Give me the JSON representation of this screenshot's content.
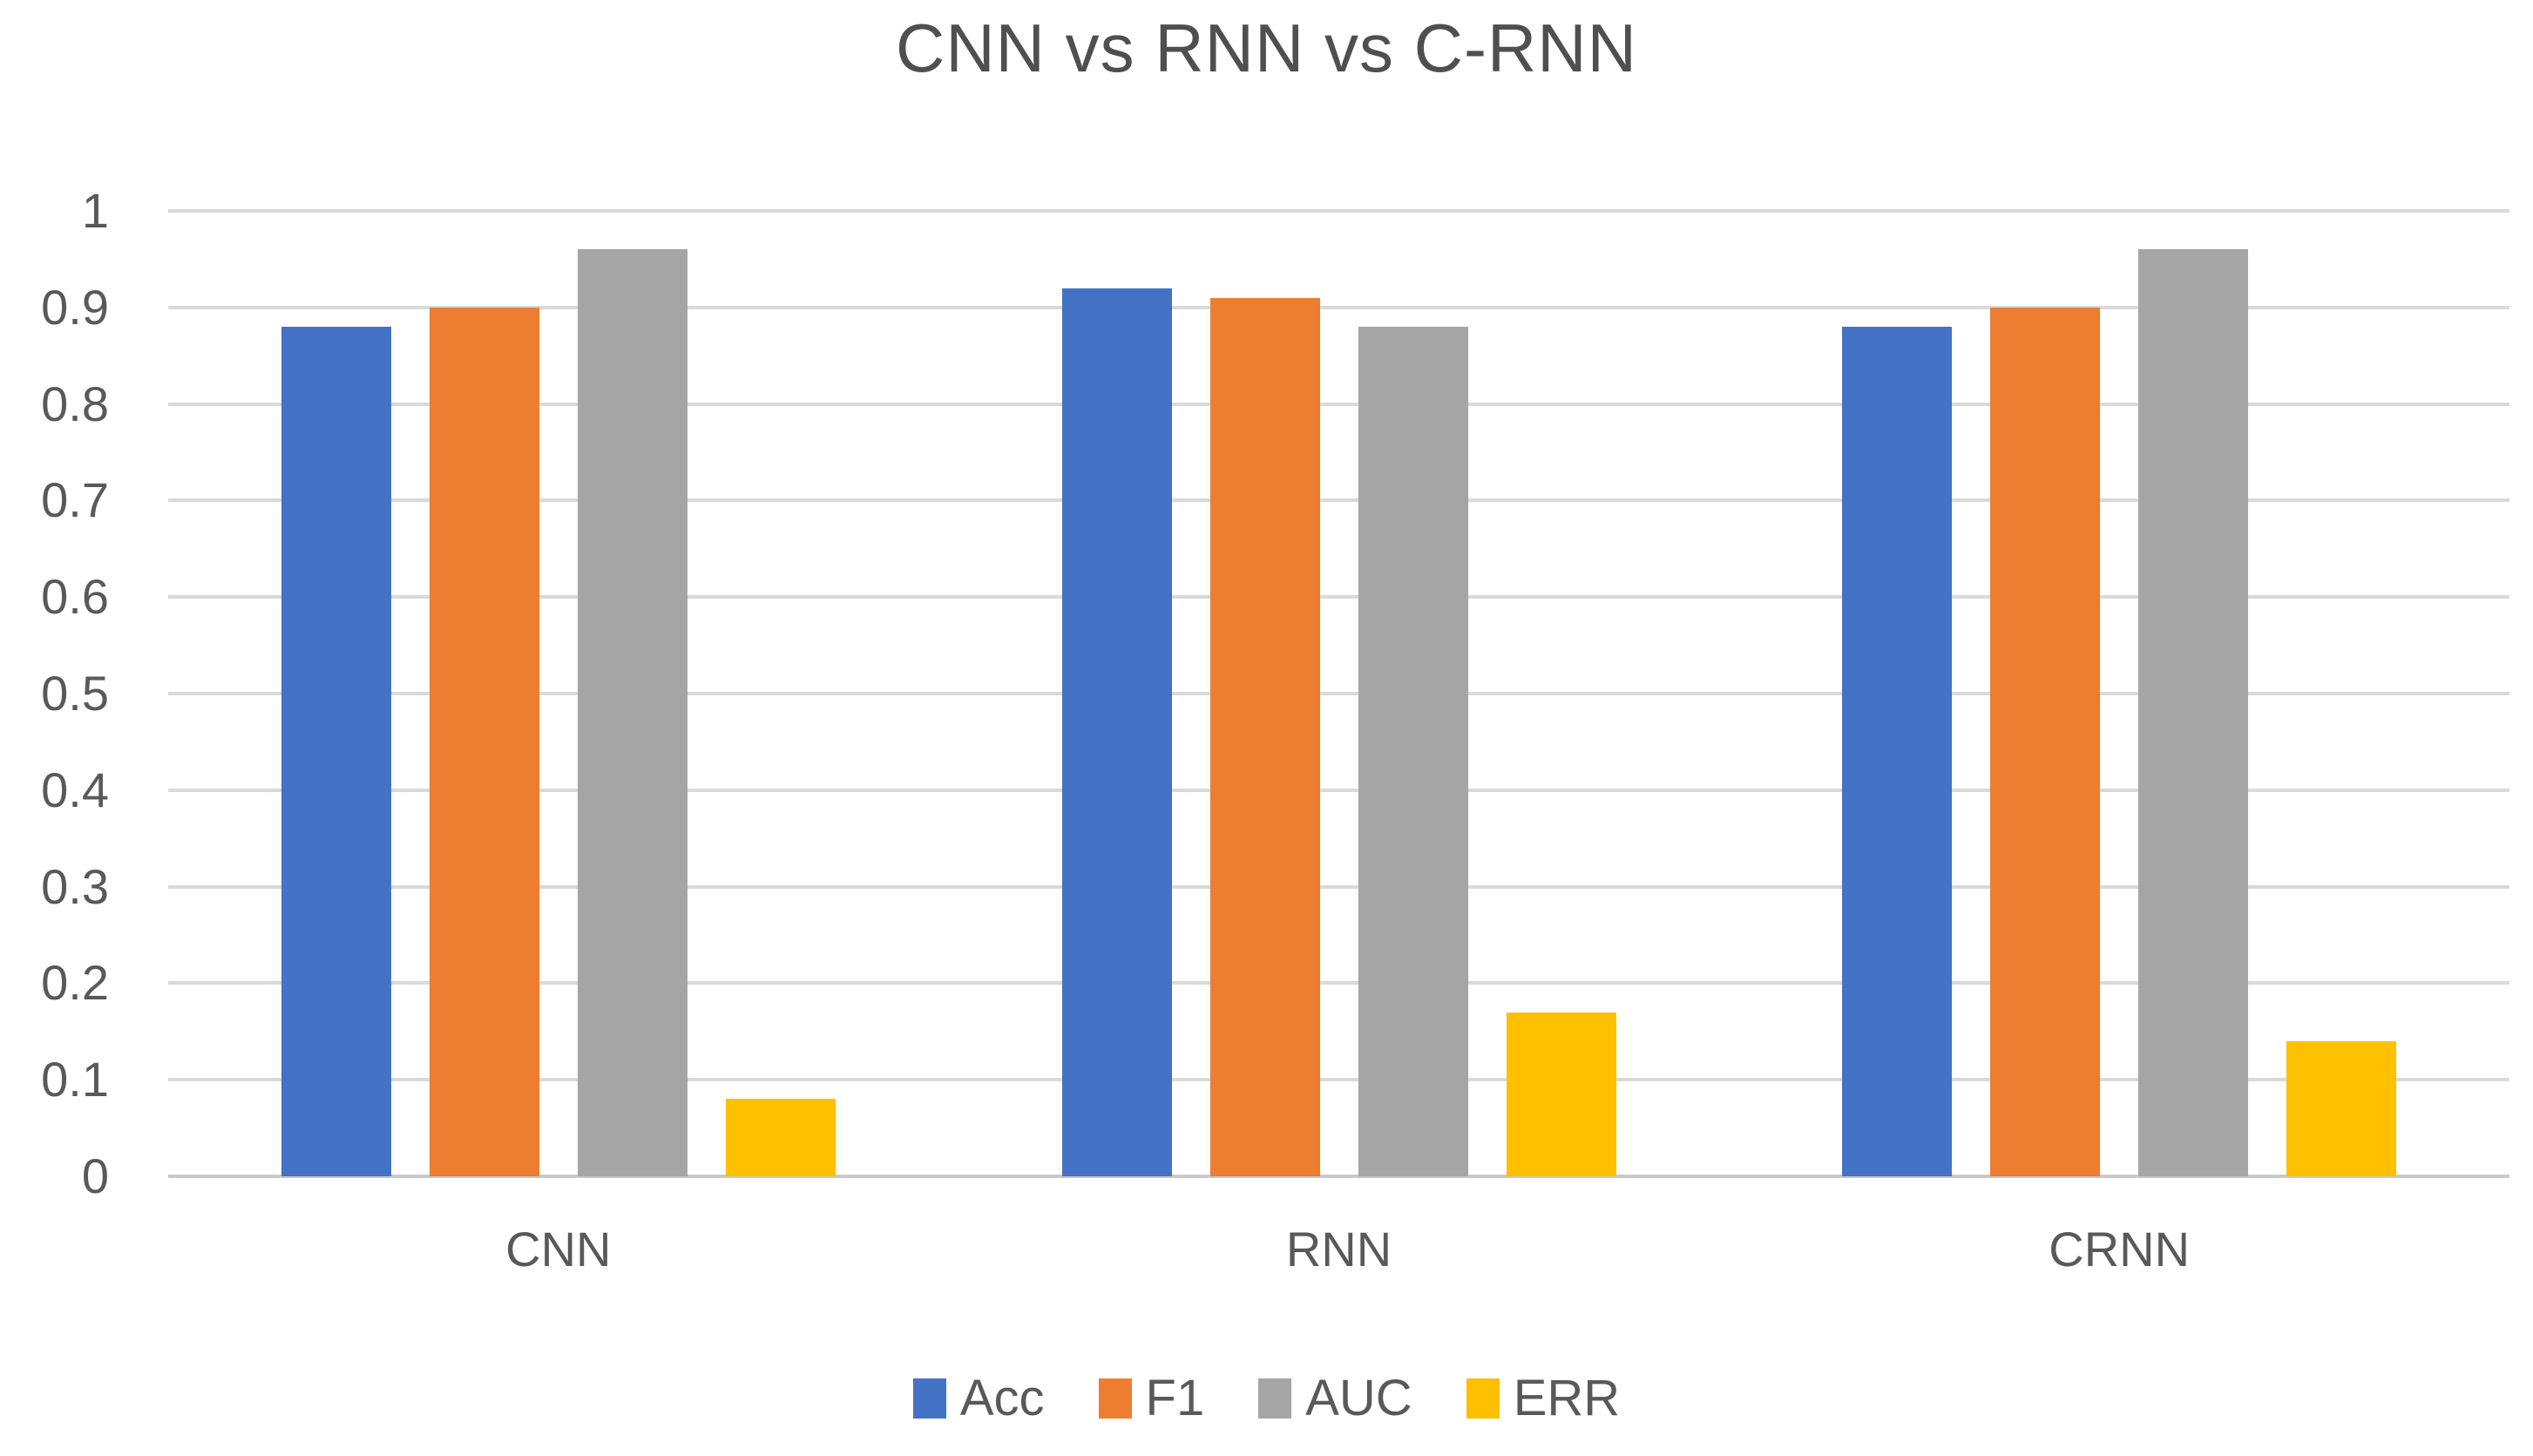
{
  "chart": {
    "background": "#FFFFFF",
    "text_color": "#595959",
    "title_color": "#4F4F4F",
    "gridline_color": "#D9D9D9",
    "axis_line_color": "#C9C9C9"
  },
  "chart_data": {
    "type": "bar",
    "title": "CNN vs RNN vs C-RNN",
    "categories": [
      "CNN",
      "RNN",
      "CRNN"
    ],
    "series": [
      {
        "name": "Acc",
        "color": "#4472C4",
        "values": [
          0.88,
          0.92,
          0.88
        ]
      },
      {
        "name": "F1",
        "color": "#ED7D31",
        "values": [
          0.9,
          0.91,
          0.9
        ]
      },
      {
        "name": "AUC",
        "color": "#A5A5A5",
        "values": [
          0.96,
          0.88,
          0.96
        ]
      },
      {
        "name": "ERR",
        "color": "#FFC000",
        "values": [
          0.08,
          0.17,
          0.14
        ]
      }
    ],
    "xlabel": "",
    "ylabel": "",
    "ylim": [
      0,
      1
    ],
    "ytick_step": 0.1,
    "ytick_labels": [
      "0",
      "0.1",
      "0.2",
      "0.3",
      "0.4",
      "0.5",
      "0.6",
      "0.7",
      "0.8",
      "0.9",
      "1"
    ],
    "grid": "horizontal-major-only",
    "legend_position": "bottom-center"
  }
}
